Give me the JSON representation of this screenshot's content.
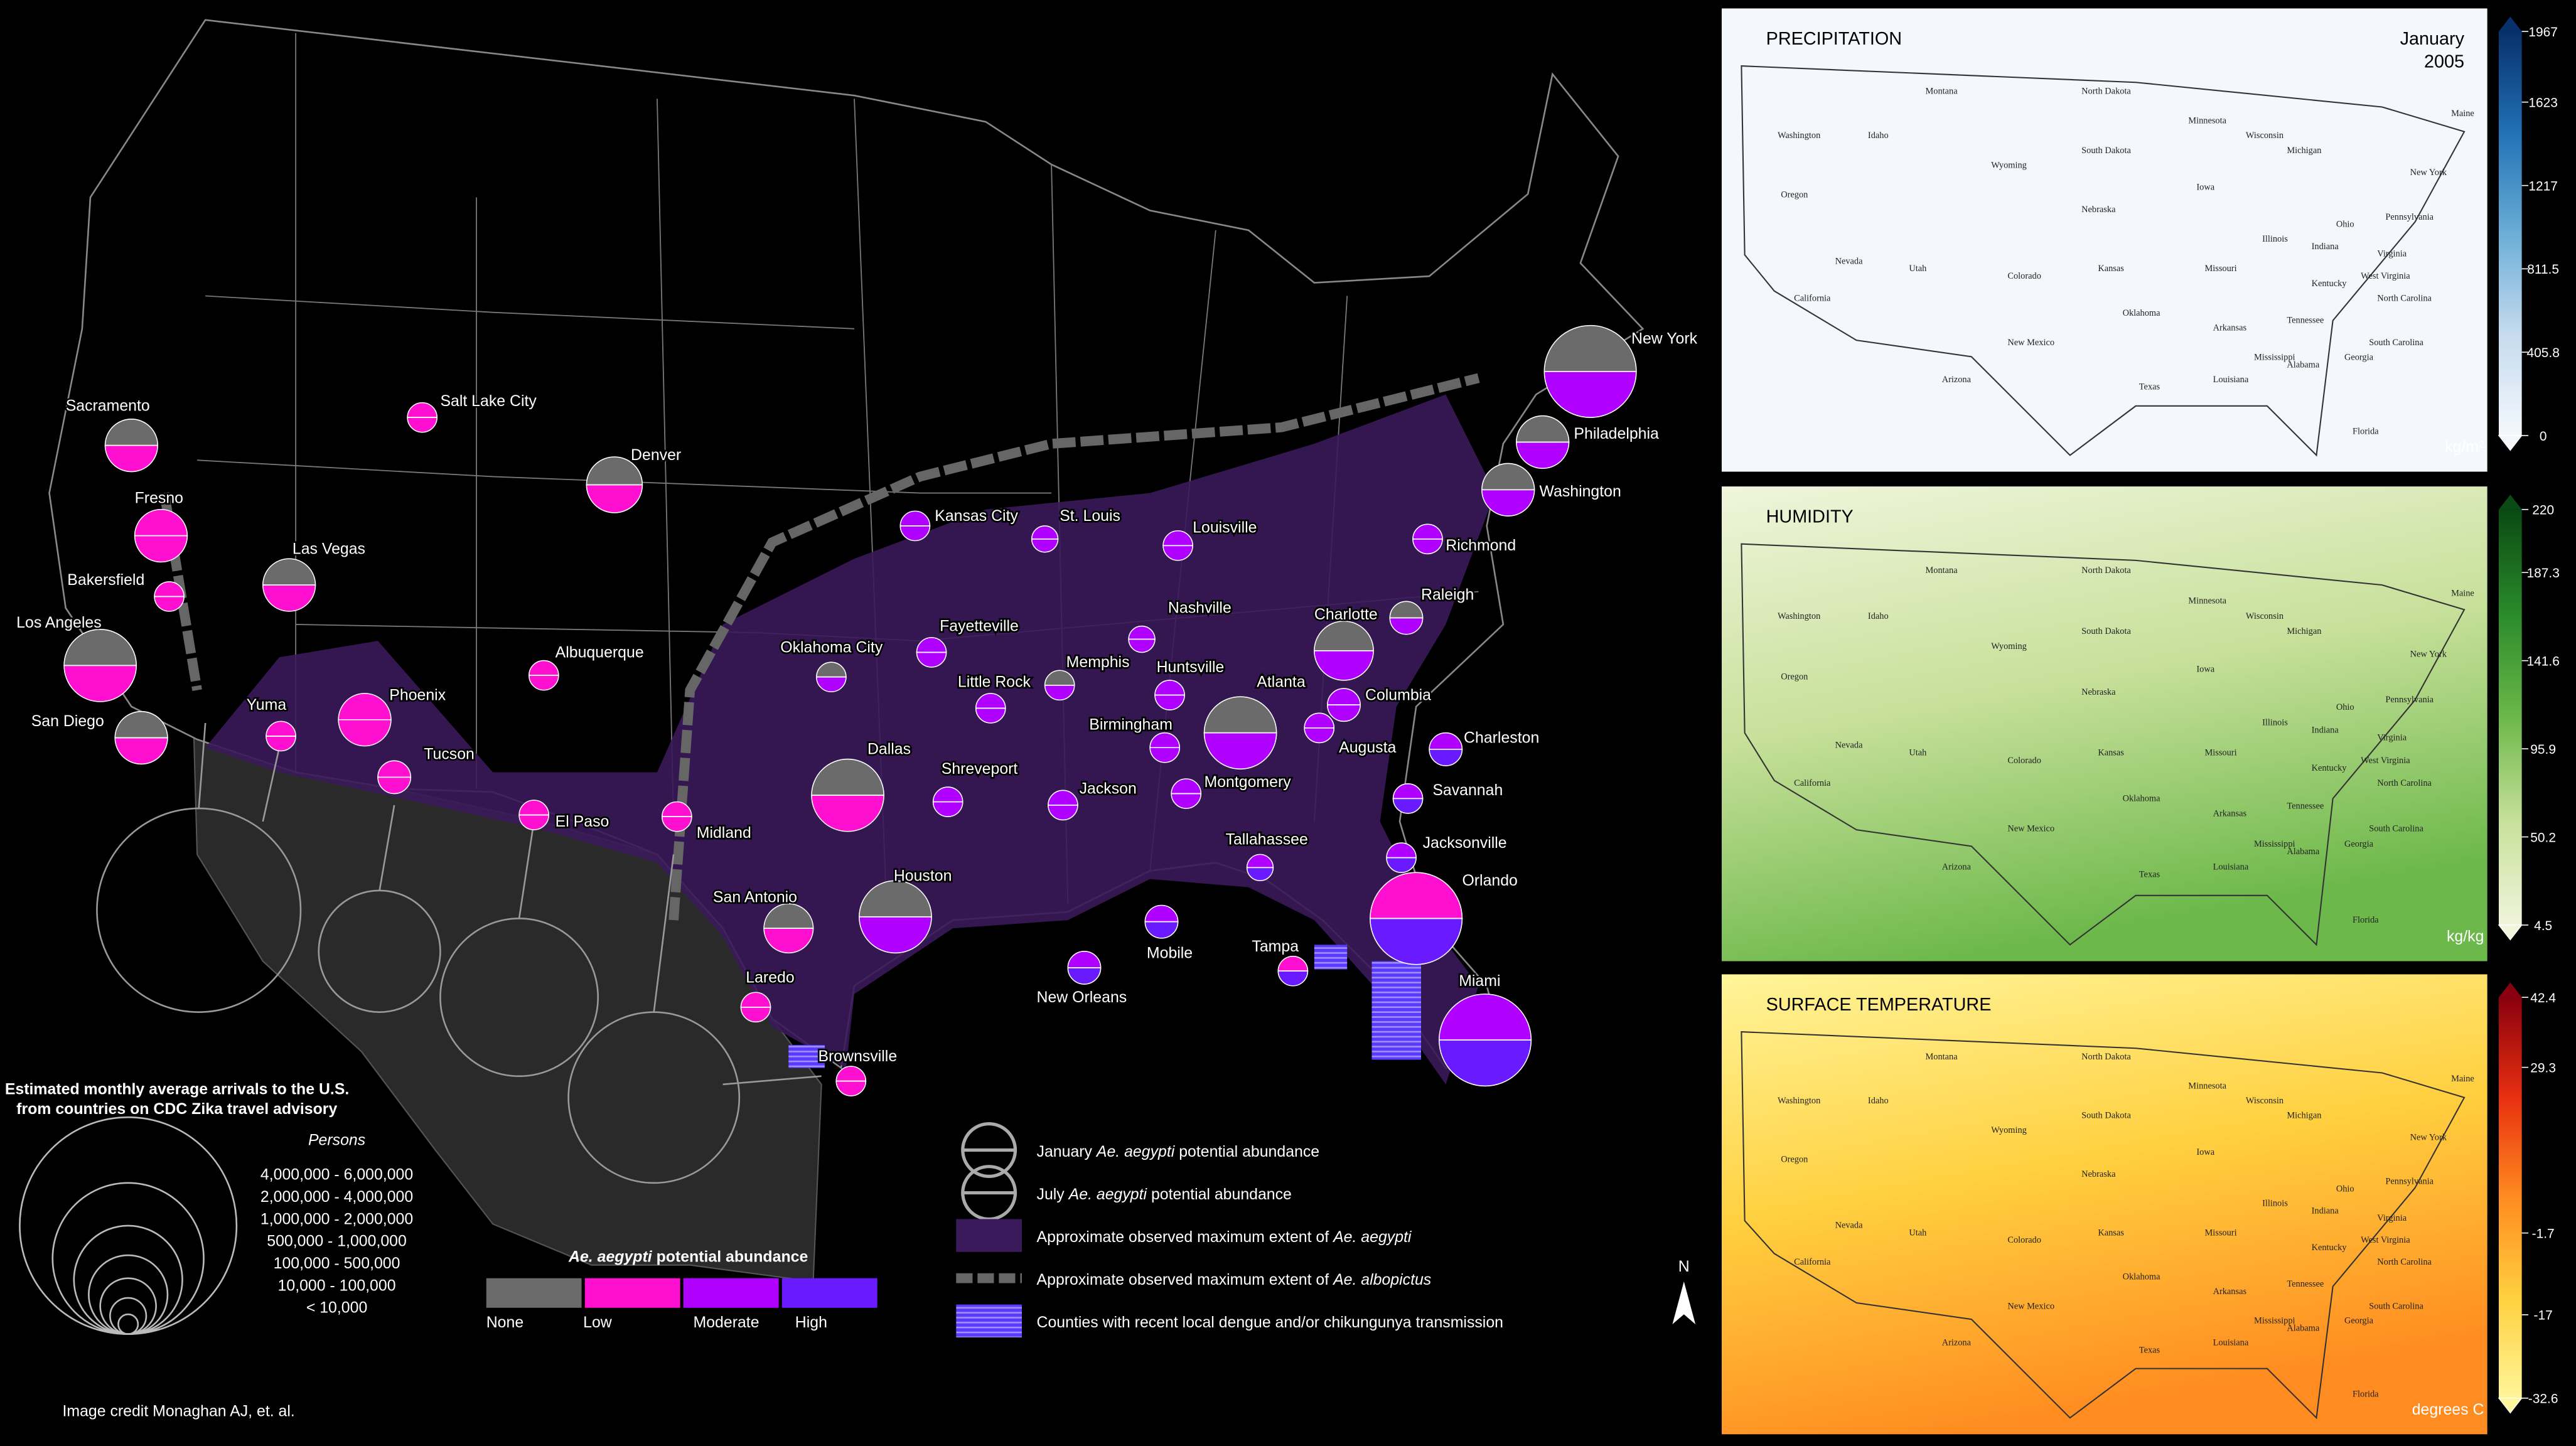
{
  "map": {
    "cities": [
      "New York",
      "Philadelphia",
      "Washington",
      "Richmond",
      "Raleigh",
      "Charlotte",
      "Columbia",
      "Charleston",
      "Augusta",
      "Savannah",
      "Jacksonville",
      "Orlando",
      "Miami",
      "Tampa",
      "Tallahassee",
      "Atlanta",
      "Montgomery",
      "Birmingham",
      "Huntsville",
      "Nashville",
      "Louisville",
      "St. Louis",
      "Kansas City",
      "Memphis",
      "Fayetteville",
      "Little Rock",
      "Oklahoma City",
      "Jackson",
      "Mobile",
      "New Orleans",
      "Shreveport",
      "Dallas",
      "Houston",
      "San Antonio",
      "Laredo",
      "Brownsville",
      "Midland",
      "El Paso",
      "Albuquerque",
      "Tucson",
      "Phoenix",
      "Yuma",
      "San Diego",
      "Los Angeles",
      "Bakersfield",
      "Fresno",
      "Sacramento",
      "Las Vegas",
      "Salt Lake City",
      "Denver"
    ],
    "arrivals_legend": {
      "title": [
        "Estimated monthly average arrivals to the U.S.",
        "from countries on CDC Zika travel advisory"
      ],
      "unit": "Persons",
      "ranges": [
        "4,000,000  -  6,000,000",
        "2,000,000  -  4,000,000",
        "1,000,000  -  2,000,000",
        "500,000  -  1,000,000",
        "100,000  -  500,000",
        "10,000  -  100,000",
        "< 10,000"
      ]
    },
    "abundance_legend": {
      "title": [
        "Ae. aegypti",
        " potential abundance"
      ],
      "levels": [
        "None",
        "Low",
        "Moderate",
        "High"
      ],
      "colors": [
        "#6b6b6b",
        "#ff10d0",
        "#b000ff",
        "#6a1aff"
      ]
    },
    "key": [
      [
        "January ",
        "Ae. aegypti",
        " potential abundance"
      ],
      [
        "July ",
        "Ae. aegypti",
        " potential abundance"
      ],
      [
        "Approximate observed maximum extent of  ",
        "Ae. aegypti"
      ],
      [
        "Approximate observed maximum extent of  ",
        "Ae. albopictus"
      ],
      [
        "Counties with recent local dengue and/or chikungunya transmission"
      ]
    ],
    "north": "N",
    "credit": "Image credit Monaghan AJ, et. al."
  },
  "panels": [
    {
      "title": "PRECIPITATION",
      "date": [
        "January",
        "2005"
      ],
      "unit": "kg/m²",
      "ticks": [
        1967,
        1623,
        1217,
        811.5,
        405.8,
        0
      ],
      "colors": [
        "#f4f8fc",
        "#c6dbef",
        "#6baed6",
        "#2171b5",
        "#08306b"
      ]
    },
    {
      "title": "HUMIDITY",
      "unit": "kg/kg",
      "ticks": [
        220,
        187.3,
        141.6,
        95.9,
        50.2,
        4.5
      ],
      "colors": [
        "#f0f5dc",
        "#c7e09a",
        "#6cb84a",
        "#2a8a2a",
        "#0a4a14"
      ]
    },
    {
      "title": "SURFACE TEMPERATURE",
      "unit": "degrees C",
      "ticks": [
        42.4,
        29.3,
        -1.7,
        -17,
        -32.6
      ],
      "colors": [
        "#fff59a",
        "#ffd040",
        "#ff8c20",
        "#e83010",
        "#8a0010"
      ]
    }
  ],
  "states": [
    "Washington",
    "Oregon",
    "California",
    "Nevada",
    "Idaho",
    "Montana",
    "Wyoming",
    "Utah",
    "Colorado",
    "Arizona",
    "New Mexico",
    "North Dakota",
    "South Dakota",
    "Nebraska",
    "Kansas",
    "Oklahoma",
    "Texas",
    "Minnesota",
    "Iowa",
    "Missouri",
    "Arkansas",
    "Louisiana",
    "Wisconsin",
    "Illinois",
    "Mississippi",
    "Michigan",
    "Indiana",
    "Kentucky",
    "Tennessee",
    "Alabama",
    "Georgia",
    "Ohio",
    "Florida",
    "South Carolina",
    "North Carolina",
    "Virginia",
    "West Virginia",
    "Pennsylvania",
    "New York",
    "Maine"
  ]
}
